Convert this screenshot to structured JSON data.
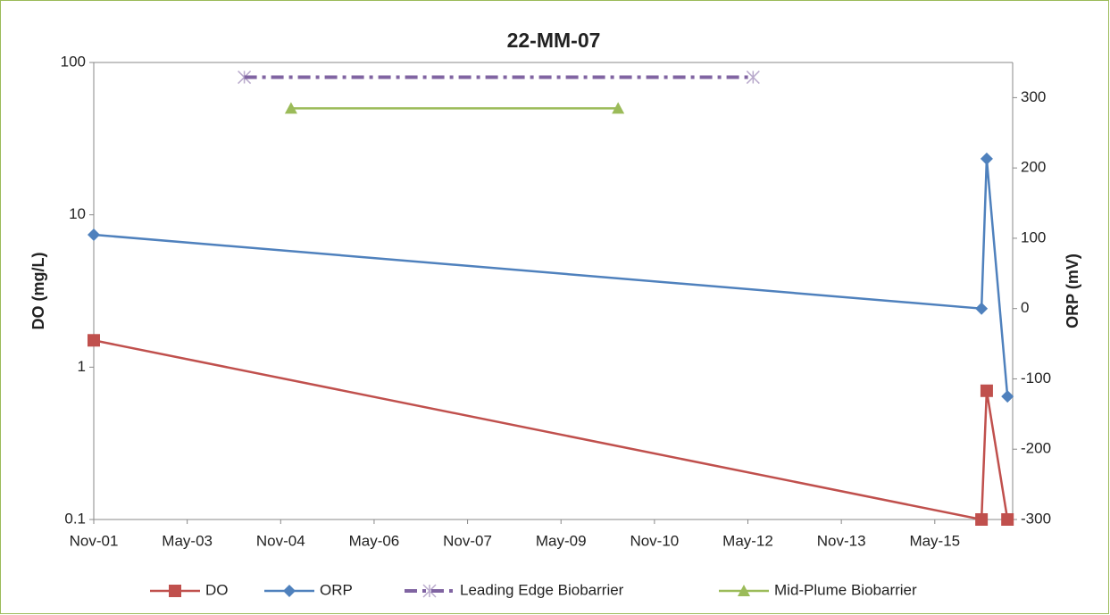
{
  "chart_data": {
    "type": "line",
    "title": "22-MM-07",
    "y_label": "DO (mg/L)",
    "y2_label": "ORP (mV)",
    "xlim": [
      "2001-11",
      "2016-08"
    ],
    "xticks": [
      {
        "value": "2001-11",
        "label": "Nov-01"
      },
      {
        "value": "2003-05",
        "label": "May-03"
      },
      {
        "value": "2004-11",
        "label": "Nov-04"
      },
      {
        "value": "2006-05",
        "label": "May-06"
      },
      {
        "value": "2007-11",
        "label": "Nov-07"
      },
      {
        "value": "2009-05",
        "label": "May-09"
      },
      {
        "value": "2010-11",
        "label": "Nov-10"
      },
      {
        "value": "2012-05",
        "label": "May-12"
      },
      {
        "value": "2013-11",
        "label": "Nov-13"
      },
      {
        "value": "2015-05",
        "label": "May-15"
      }
    ],
    "ylim": [
      0.1,
      100
    ],
    "yticks": [
      0.1,
      1,
      10,
      100
    ],
    "y_log": true,
    "y2lim": [
      -300,
      350
    ],
    "y2ticks": [
      -300,
      -200,
      -100,
      0,
      100,
      200,
      300
    ],
    "legend": "bottom",
    "series": [
      {
        "name": "DO",
        "color": "#c0504d",
        "marker": "square",
        "dash": "solid",
        "x": [
          "2001-11",
          "2016-02",
          "2016-03",
          "2016-07"
        ],
        "values": [
          1.5,
          0.1,
          0.7,
          0.1
        ]
      },
      {
        "name": "ORP",
        "color": "#4f81bd",
        "marker": "diamond",
        "dash": "solid",
        "axis": "y2",
        "x": [
          "2001-11",
          "2016-02",
          "2016-03",
          "2016-07"
        ],
        "values": [
          105,
          0,
          213,
          -125
        ]
      },
      {
        "name": "Leading Edge Biobarrier",
        "color": "#8064a2",
        "marker": "star",
        "dash": "dashdot",
        "x": [
          "2004-04",
          "2012-06"
        ],
        "values": [
          80,
          80
        ]
      },
      {
        "name": "Mid-Plume Biobarrier",
        "color": "#9bbb59",
        "marker": "triangle",
        "dash": "solid",
        "x": [
          "2005-01",
          "2010-04"
        ],
        "values": [
          50,
          50
        ]
      }
    ]
  }
}
